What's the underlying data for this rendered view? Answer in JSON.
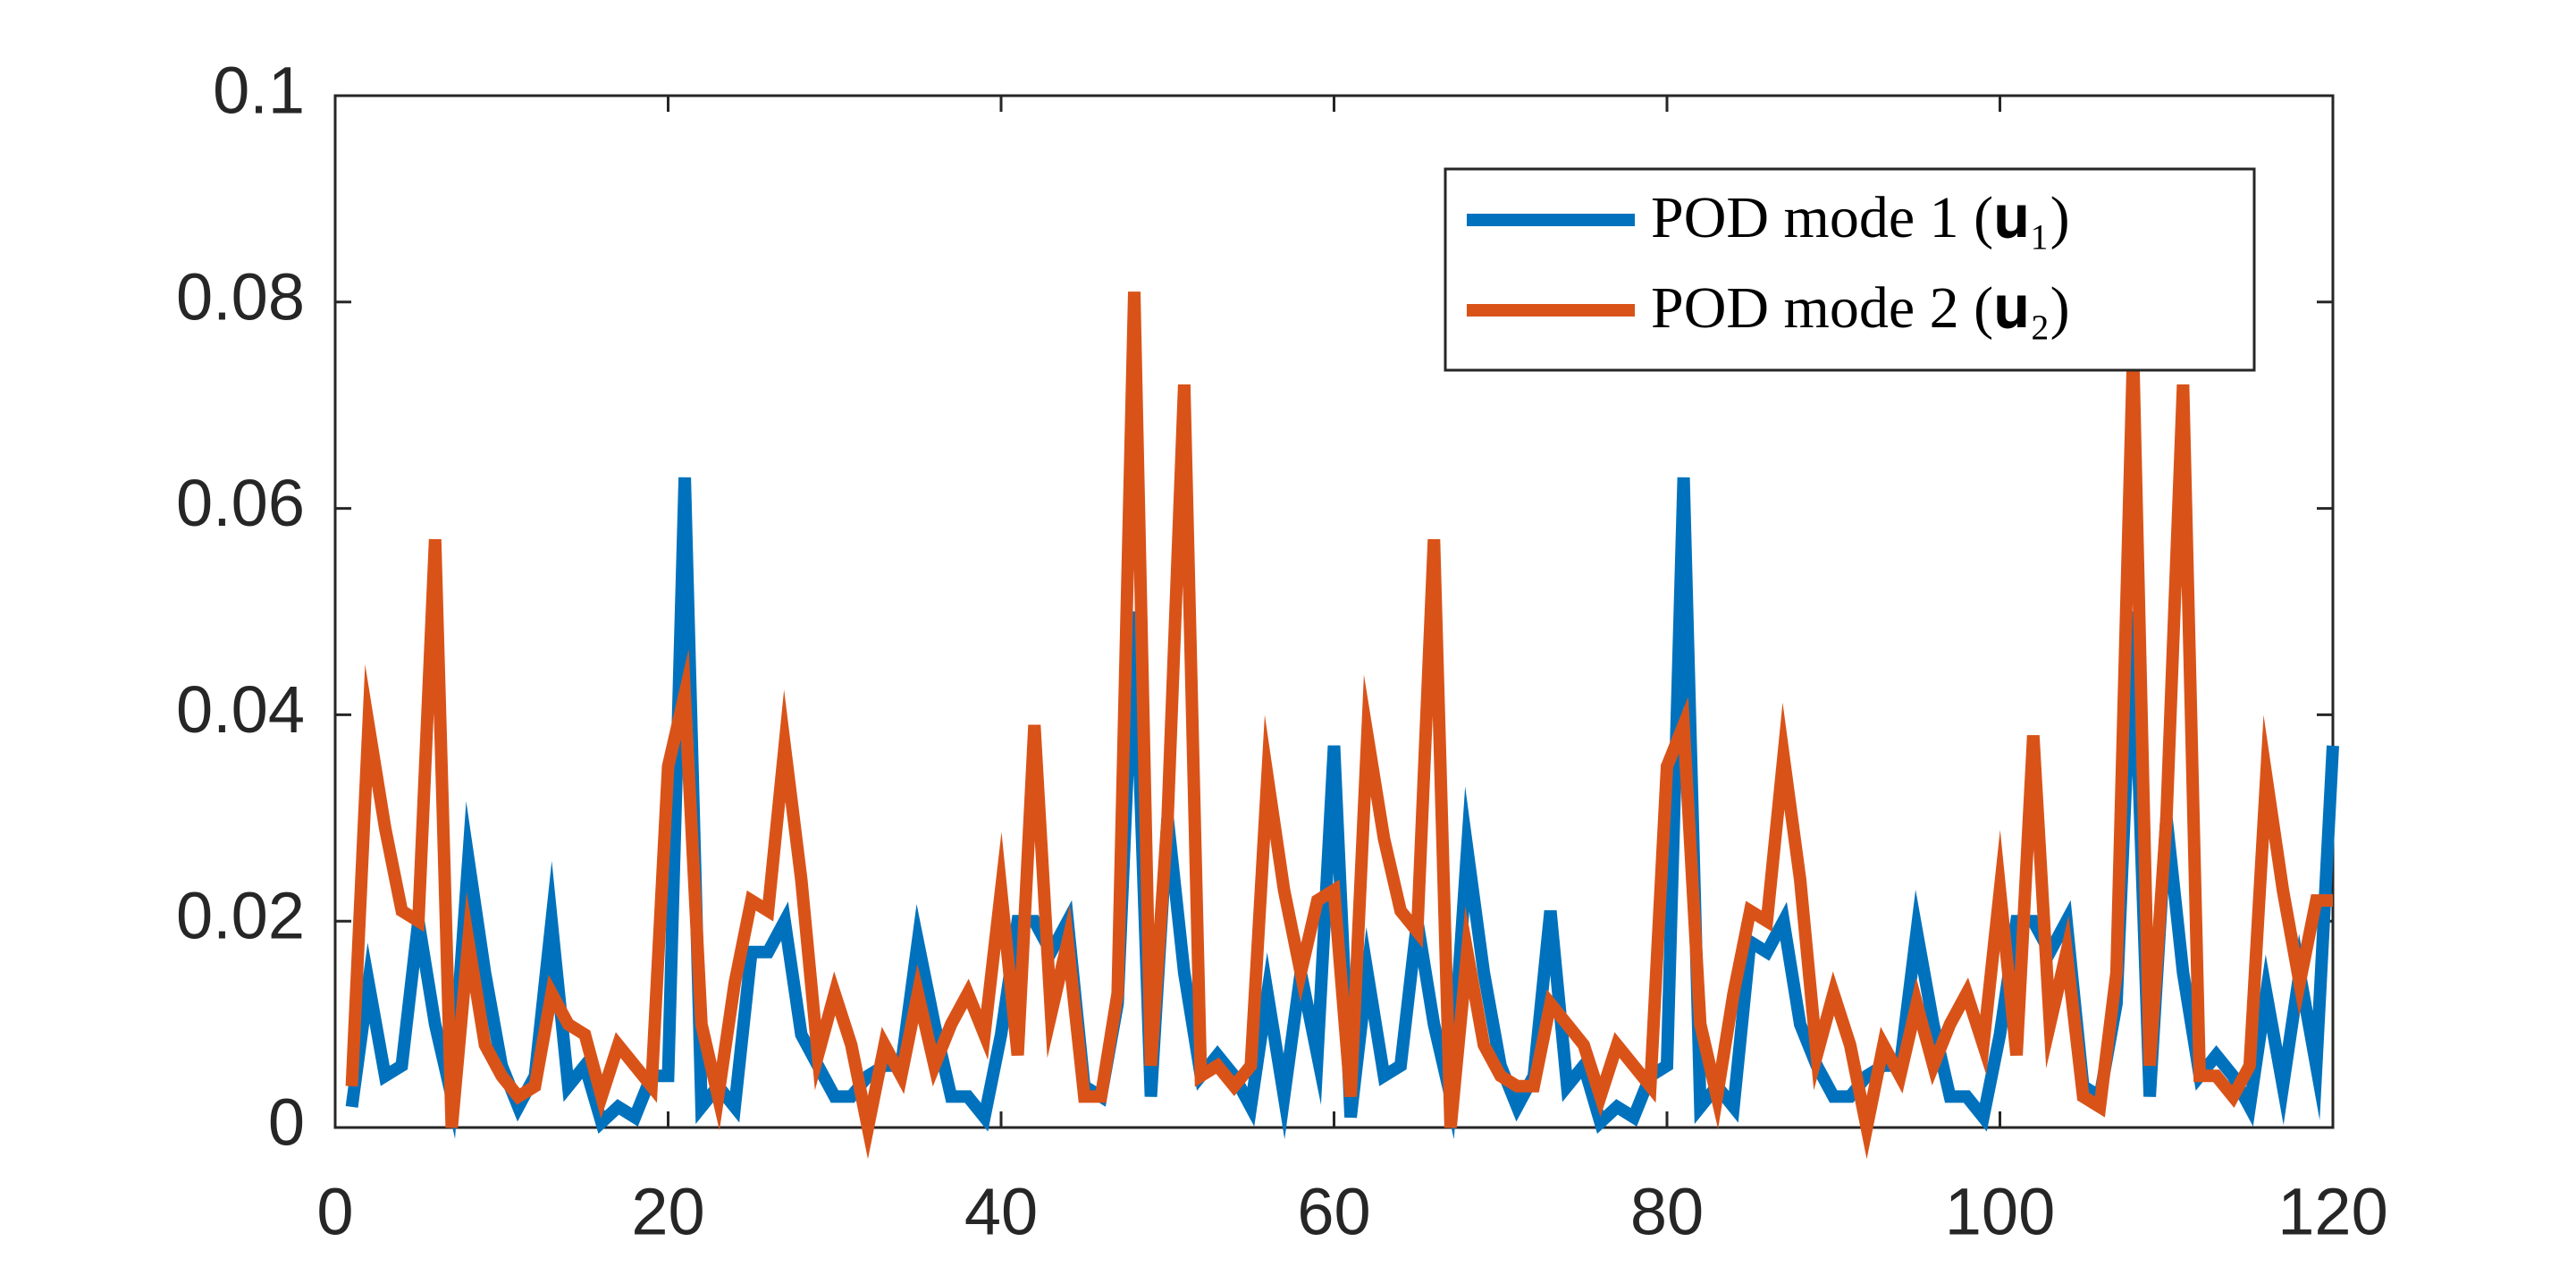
{
  "chart_data": {
    "type": "line",
    "x": [
      1,
      2,
      3,
      4,
      5,
      6,
      7,
      8,
      9,
      10,
      11,
      12,
      13,
      14,
      15,
      16,
      17,
      18,
      19,
      20,
      21,
      22,
      23,
      24,
      25,
      26,
      27,
      28,
      29,
      30,
      31,
      32,
      33,
      34,
      35,
      36,
      37,
      38,
      39,
      40,
      41,
      42,
      43,
      44,
      45,
      46,
      47,
      48,
      49,
      50,
      51,
      52,
      53,
      54,
      55,
      56,
      57,
      58,
      59,
      60,
      61,
      62,
      63,
      64,
      65,
      66,
      67,
      68,
      69,
      70,
      71,
      72,
      73,
      74,
      75,
      76,
      77,
      78,
      79,
      80,
      81,
      82,
      83,
      84,
      85,
      86,
      87,
      88,
      89,
      90,
      91,
      92,
      93,
      94,
      95,
      96,
      97,
      98,
      99,
      100,
      101,
      102,
      103,
      104,
      105,
      106,
      107,
      108,
      109,
      110,
      111,
      112,
      113,
      114,
      115,
      116,
      117,
      118,
      119,
      120
    ],
    "series": [
      {
        "name": "POD mode 1 (𝐮₁)",
        "color": "#0072BD",
        "values": [
          0.002,
          0.014,
          0.005,
          0.006,
          0.02,
          0.01,
          0.003,
          0.026,
          0.015,
          0.006,
          0.002,
          0.005,
          0.02,
          0.004,
          0.006,
          0.0005,
          0.002,
          0.001,
          0.005,
          0.005,
          0.063,
          0.002,
          0.004,
          0.002,
          0.017,
          0.017,
          0.02,
          0.009,
          0.006,
          0.003,
          0.003,
          0.005,
          0.006,
          0.006,
          0.018,
          0.01,
          0.003,
          0.003,
          0.001,
          0.009,
          0.02,
          0.02,
          0.017,
          0.02,
          0.004,
          0.003,
          0.012,
          0.05,
          0.003,
          0.03,
          0.015,
          0.005,
          0.007,
          0.005,
          0.002,
          0.013,
          0.003,
          0.015,
          0.007,
          0.037,
          0.001,
          0.015,
          0.005,
          0.006,
          0.02,
          0.01,
          0.003,
          0.027,
          0.015,
          0.006,
          0.002,
          0.005,
          0.021,
          0.004,
          0.006,
          0.0005,
          0.002,
          0.001,
          0.005,
          0.006,
          0.063,
          0.002,
          0.004,
          0.002,
          0.018,
          0.017,
          0.02,
          0.01,
          0.006,
          0.003,
          0.003,
          0.005,
          0.006,
          0.006,
          0.019,
          0.01,
          0.003,
          0.003,
          0.001,
          0.009,
          0.02,
          0.02,
          0.017,
          0.02,
          0.004,
          0.003,
          0.012,
          0.05,
          0.003,
          0.03,
          0.015,
          0.005,
          0.007,
          0.005,
          0.002,
          0.013,
          0.004,
          0.015,
          0.006,
          0.037
        ]
      },
      {
        "name": "POD mode 2 (𝐮₂)",
        "color": "#D95319",
        "values": [
          0.004,
          0.039,
          0.029,
          0.021,
          0.02,
          0.057,
          0,
          0.018,
          0.008,
          0.005,
          0.003,
          0.004,
          0.013,
          0.01,
          0.009,
          0.003,
          0.008,
          0.006,
          0.004,
          0.035,
          0.042,
          0.01,
          0.003,
          0.014,
          0.022,
          0.021,
          0.037,
          0.024,
          0.007,
          0.013,
          0.008,
          0,
          0.008,
          0.005,
          0.013,
          0.006,
          0.01,
          0.013,
          0.009,
          0.023,
          0.007,
          0.039,
          0.011,
          0.018,
          0.003,
          0.003,
          0.013,
          0.081,
          0.006,
          0.03,
          0.072,
          0.005,
          0.006,
          0.004,
          0.006,
          0.034,
          0.023,
          0.015,
          0.022,
          0.023,
          0.003,
          0.038,
          0.028,
          0.021,
          0.019,
          0.057,
          0,
          0.017,
          0.008,
          0.005,
          0.004,
          0.004,
          0.012,
          0.01,
          0.008,
          0.003,
          0.008,
          0.006,
          0.004,
          0.035,
          0.039,
          0.01,
          0.003,
          0.013,
          0.021,
          0.02,
          0.036,
          0.024,
          0.007,
          0.013,
          0.008,
          0,
          0.008,
          0.005,
          0.012,
          0.006,
          0.01,
          0.013,
          0.008,
          0.023,
          0.007,
          0.038,
          0.01,
          0.017,
          0.003,
          0.002,
          0.015,
          0.075,
          0.006,
          0.03,
          0.072,
          0.005,
          0.005,
          0.003,
          0.006,
          0.034,
          0.023,
          0.014,
          0.022,
          0.022
        ]
      }
    ],
    "xlim": [
      0,
      120
    ],
    "xticks": [
      0,
      20,
      40,
      60,
      80,
      100,
      120
    ],
    "ylim": [
      0,
      0.1
    ],
    "yticks": [
      0,
      0.02,
      0.04,
      0.06,
      0.08,
      0.1
    ],
    "grid": false,
    "legend": "northeast"
  }
}
